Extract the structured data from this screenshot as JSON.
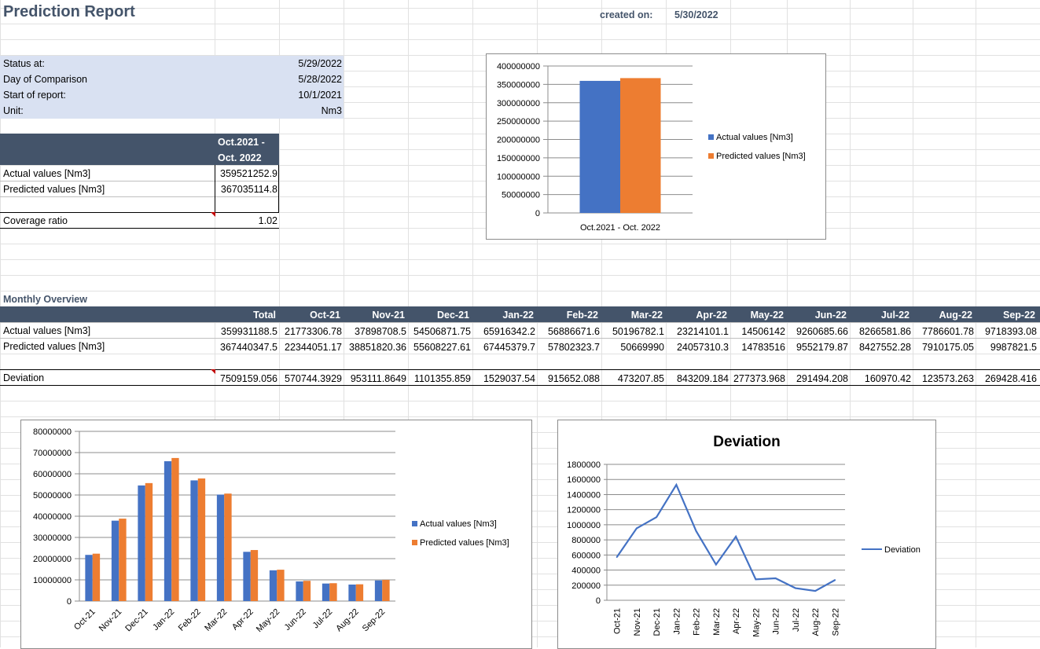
{
  "report": {
    "title": "Prediction Report",
    "created_label": "created on:",
    "created_value": "5/30/2022"
  },
  "info": [
    {
      "label": "Status at:",
      "value": "5/29/2022"
    },
    {
      "label": "Day of Comparison",
      "value": "5/28/2022"
    },
    {
      "label": "Start of report:",
      "value": "10/1/2021"
    },
    {
      "label": "Unit:",
      "value": "Nm3"
    }
  ],
  "summary": {
    "header_line1": "Oct.2021 -",
    "header_line2": "Oct. 2022",
    "actual_label": "Actual values [Nm3]",
    "actual_value": "359521252.9",
    "predicted_label": "Predicted values [Nm3]",
    "predicted_value": "367035114.8",
    "coverage_label": "Coverage ratio",
    "coverage_value": "1.02"
  },
  "monthly": {
    "section_title": "Monthly Overview",
    "columns": [
      "Total",
      "Oct-21",
      "Nov-21",
      "Dec-21",
      "Jan-22",
      "Feb-22",
      "Mar-22",
      "Apr-22",
      "May-22",
      "Jun-22",
      "Jul-22",
      "Aug-22",
      "Sep-22"
    ],
    "actual_label": "Actual values [Nm3]",
    "actual": [
      "359931188.5",
      "21773306.78",
      "37898708.5",
      "54506871.75",
      "65916342.2",
      "56886671.6",
      "50196782.1",
      "23214101.1",
      "14506142",
      "9260685.66",
      "8266581.86",
      "7786601.78",
      "9718393.08"
    ],
    "predicted_label": "Predicted values [Nm3]",
    "predicted": [
      "367440347.5",
      "22344051.17",
      "38851820.36",
      "55608227.61",
      "67445379.7",
      "57802323.7",
      "50669990",
      "24057310.3",
      "14783516",
      "9552179.87",
      "8427552.28",
      "7910175.05",
      "9987821.5"
    ],
    "deviation_label": "Deviation",
    "deviation": [
      "7509159.056",
      "570744.3929",
      "953111.8649",
      "1101355.859",
      "1529037.54",
      "915652.088",
      "473207.85",
      "843209.184",
      "277373.968",
      "291494.208",
      "160970.42",
      "123573.263",
      "269428.416"
    ]
  },
  "colors": {
    "actual": "#4472c4",
    "predicted": "#ed7d31",
    "header_band": "#44546a",
    "info_band": "#d9e1f2"
  },
  "chart_data": [
    {
      "type": "bar",
      "categories": [
        "Oct.2021 - Oct. 2022"
      ],
      "series": [
        {
          "name": "Actual values [Nm3]",
          "values": [
            359521252.9
          ]
        },
        {
          "name": "Predicted values [Nm3]",
          "values": [
            367035114.8
          ]
        }
      ],
      "ylim": [
        0,
        400000000
      ],
      "yticks": [
        "0",
        "50000000",
        "100000000",
        "150000000",
        "200000000",
        "250000000",
        "300000000",
        "350000000",
        "400000000"
      ],
      "legend": "right",
      "grid": true
    },
    {
      "type": "bar",
      "categories": [
        "Oct-21",
        "Nov-21",
        "Dec-21",
        "Jan-22",
        "Feb-22",
        "Mar-22",
        "Apr-22",
        "May-22",
        "Jun-22",
        "Jul-22",
        "Aug-22",
        "Sep-22"
      ],
      "series": [
        {
          "name": "Actual values [Nm3]",
          "values": [
            21773306.78,
            37898708.5,
            54506871.75,
            65916342.2,
            56886671.6,
            50196782.1,
            23214101.1,
            14506142,
            9260685.66,
            8266581.86,
            7786601.78,
            9718393.08
          ]
        },
        {
          "name": "Predicted values [Nm3]",
          "values": [
            22344051.17,
            38851820.36,
            55608227.61,
            67445379.7,
            57802323.7,
            50669990,
            24057310.3,
            14783516,
            9552179.87,
            8427552.28,
            7910175.05,
            9987821.5
          ]
        }
      ],
      "ylim": [
        0,
        80000000
      ],
      "yticks": [
        "0",
        "10000000",
        "20000000",
        "30000000",
        "40000000",
        "50000000",
        "60000000",
        "70000000",
        "80000000"
      ],
      "legend": "right",
      "grid": true
    },
    {
      "type": "line",
      "title": "Deviation",
      "categories": [
        "Oct-21",
        "Nov-21",
        "Dec-21",
        "Jan-22",
        "Feb-22",
        "Mar-22",
        "Apr-22",
        "May-22",
        "Jun-22",
        "Jul-22",
        "Aug-22",
        "Sep-22"
      ],
      "series": [
        {
          "name": "Deviation",
          "values": [
            570744.3929,
            953111.8649,
            1101355.859,
            1529037.54,
            915652.088,
            473207.85,
            843209.184,
            277373.968,
            291494.208,
            160970.42,
            123573.263,
            269428.416
          ]
        }
      ],
      "ylim": [
        0,
        1800000
      ],
      "yticks": [
        "0",
        "200000",
        "400000",
        "600000",
        "800000",
        "1000000",
        "1200000",
        "1400000",
        "1600000",
        "1800000"
      ],
      "legend": "right",
      "grid": true
    }
  ]
}
